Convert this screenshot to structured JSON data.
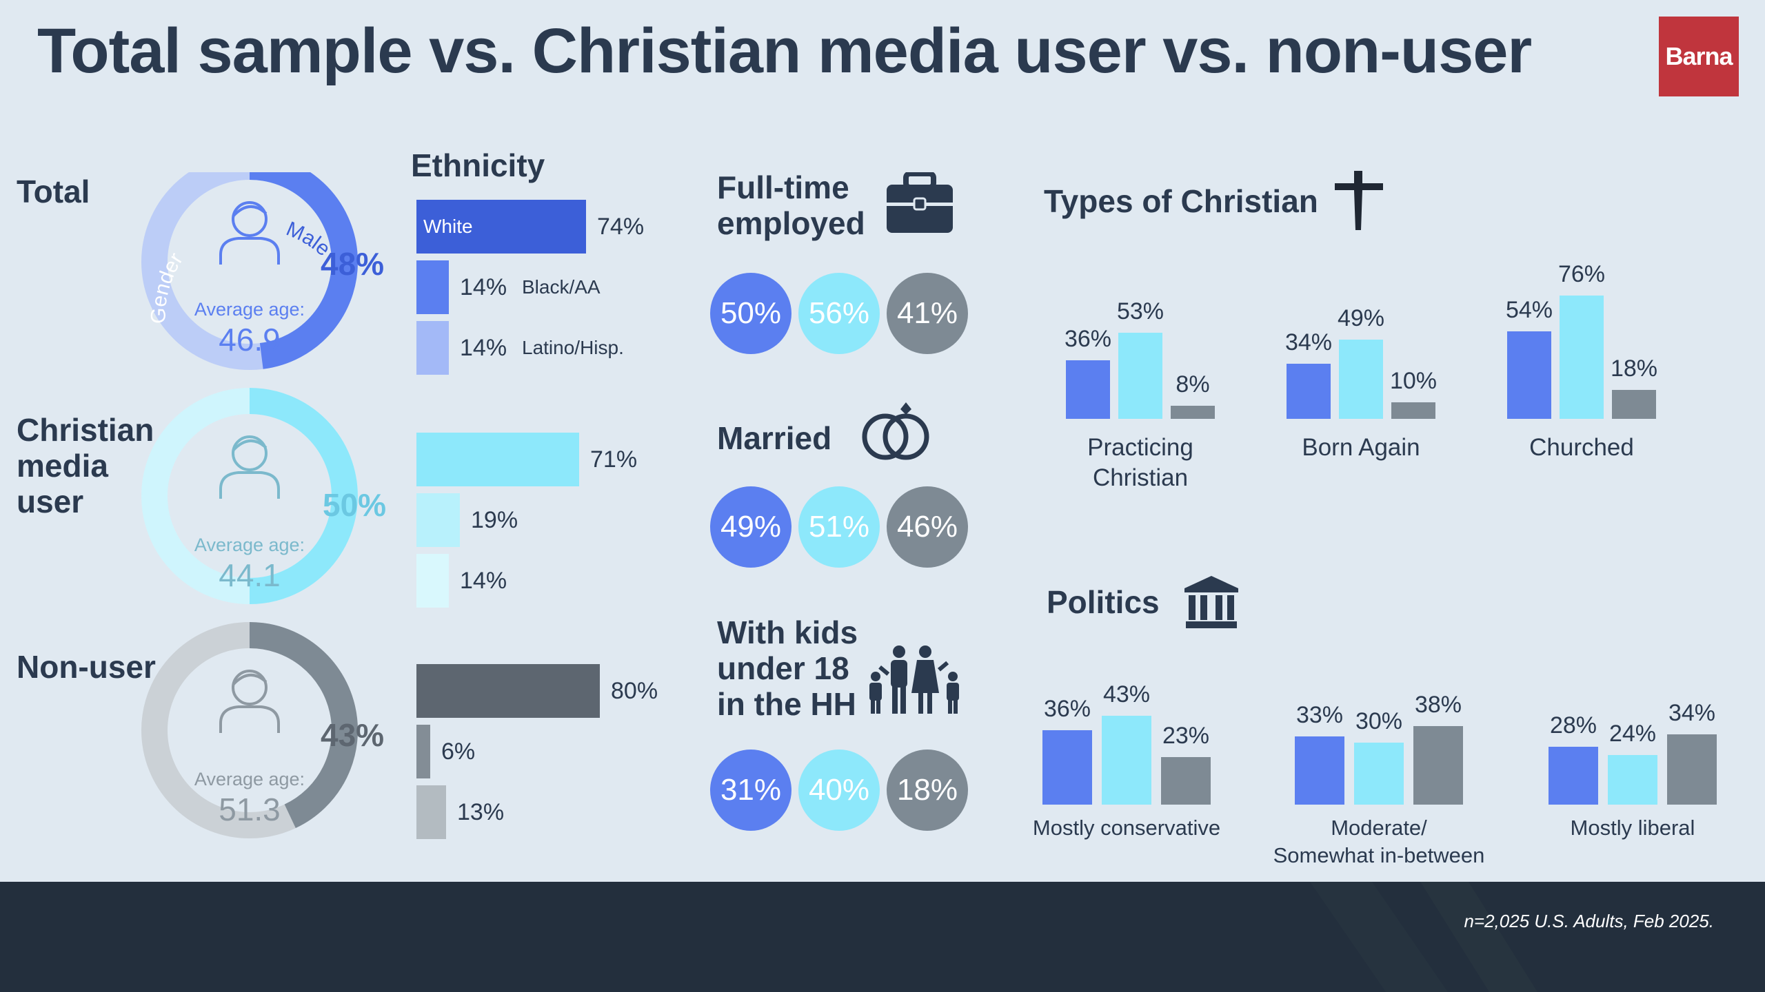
{
  "title": "Total sample vs. Christian media user vs. non-user",
  "logo": "Barna",
  "footnote": "n=2,025 U.S. Adults, Feb 2025.",
  "colors": {
    "total": "#5b7ff0",
    "user": "#8de8fb",
    "nonuser": "#7e8a94",
    "title": "#2b3a4f",
    "footer": "#232f3d",
    "logo": "#c0353d"
  },
  "segments": [
    {
      "label": "Total",
      "male_pct": "48%",
      "male_value": 48,
      "avg_age_label": "Average age:",
      "avg_age": "46.9",
      "color": "#3c5fd8",
      "ring_light": "#bccdf7",
      "ring_dark": "#5b7ff0",
      "person_color": "#5b7ff0"
    },
    {
      "label": "Christian media user",
      "male_pct": "50%",
      "male_value": 50,
      "avg_age_label": "Average age:",
      "avg_age": "44.1",
      "color": "#6bc8e2",
      "ring_light": "#cff5fd",
      "ring_dark": "#8de8fb",
      "person_color": "#7bb9cc"
    },
    {
      "label": "Non-user",
      "male_pct": "43%",
      "male_value": 43,
      "avg_age_label": "Average age:",
      "avg_age": "51.3",
      "color": "#5d6670",
      "ring_light": "#cbd1d6",
      "ring_dark": "#7e8a94",
      "person_color": "#8e99a2"
    }
  ],
  "gender_ring_labels": {
    "male": "Male",
    "gender": "Gender"
  },
  "ethnicity": {
    "title": "Ethnicity",
    "groups": [
      {
        "bars": [
          {
            "label": "White",
            "value": 74,
            "display": "74%",
            "color": "#3c5fd8"
          },
          {
            "label": "Black/AA",
            "value": 14,
            "display": "14%",
            "color": "#5b7ff0"
          },
          {
            "label": "Latino/Hisp.",
            "value": 14,
            "display": "14%",
            "color": "#a3b9f7"
          }
        ]
      },
      {
        "bars": [
          {
            "value": 71,
            "display": "71%",
            "color": "#8de8fb"
          },
          {
            "value": 19,
            "display": "19%",
            "color": "#b8f1fc"
          },
          {
            "value": 14,
            "display": "14%",
            "color": "#d9f8fd"
          }
        ]
      },
      {
        "bars": [
          {
            "value": 80,
            "display": "80%",
            "color": "#5d6670"
          },
          {
            "value": 6,
            "display": "6%",
            "color": "#838d96"
          },
          {
            "value": 13,
            "display": "13%",
            "color": "#b3bbc1"
          }
        ]
      }
    ]
  },
  "stats": [
    {
      "title_lines": [
        "Full-time",
        "employed"
      ],
      "icon": "briefcase-icon",
      "values": [
        "50%",
        "56%",
        "41%"
      ]
    },
    {
      "title_lines": [
        "Married"
      ],
      "icon": "rings-icon",
      "values": [
        "49%",
        "51%",
        "46%"
      ]
    },
    {
      "title_lines": [
        "With kids",
        "under 18",
        "in the HH"
      ],
      "icon": "family-icon",
      "values": [
        "31%",
        "40%",
        "18%"
      ]
    }
  ],
  "chart_data": [
    {
      "type": "bar",
      "title": "Types of Christian",
      "categories": [
        "Practicing Christian",
        "Born Again",
        "Churched"
      ],
      "series": [
        {
          "values": [
            36,
            34,
            54
          ]
        },
        {
          "values": [
            53,
            49,
            76
          ]
        },
        {
          "values": [
            8,
            10,
            18
          ]
        }
      ],
      "ylim": [
        0,
        100
      ]
    },
    {
      "type": "bar",
      "title": "Politics",
      "categories": [
        "Mostly conservative",
        "Moderate/ Somewhat in-between",
        "Mostly liberal"
      ],
      "series": [
        {
          "values": [
            36,
            33,
            28
          ]
        },
        {
          "values": [
            43,
            30,
            24
          ]
        },
        {
          "values": [
            23,
            38,
            34
          ]
        }
      ],
      "ylim": [
        0,
        100
      ]
    }
  ],
  "types_of_christian": {
    "title": "Types of Christian",
    "groups": [
      {
        "label_lines": [
          "Practicing",
          "Christian"
        ],
        "labels": [
          "36%",
          "53%",
          "8%"
        ]
      },
      {
        "label_lines": [
          "Born Again"
        ],
        "labels": [
          "34%",
          "49%",
          "10%"
        ]
      },
      {
        "label_lines": [
          "Churched"
        ],
        "labels": [
          "54%",
          "76%",
          "18%"
        ]
      }
    ]
  },
  "politics": {
    "title": "Politics",
    "groups": [
      {
        "label_lines": [
          "Mostly conservative"
        ],
        "labels": [
          "36%",
          "43%",
          "23%"
        ]
      },
      {
        "label_lines": [
          "Moderate/",
          "Somewhat in-between"
        ],
        "labels": [
          "33%",
          "30%",
          "38%"
        ]
      },
      {
        "label_lines": [
          "Mostly liberal"
        ],
        "labels": [
          "28%",
          "24%",
          "34%"
        ]
      }
    ]
  }
}
